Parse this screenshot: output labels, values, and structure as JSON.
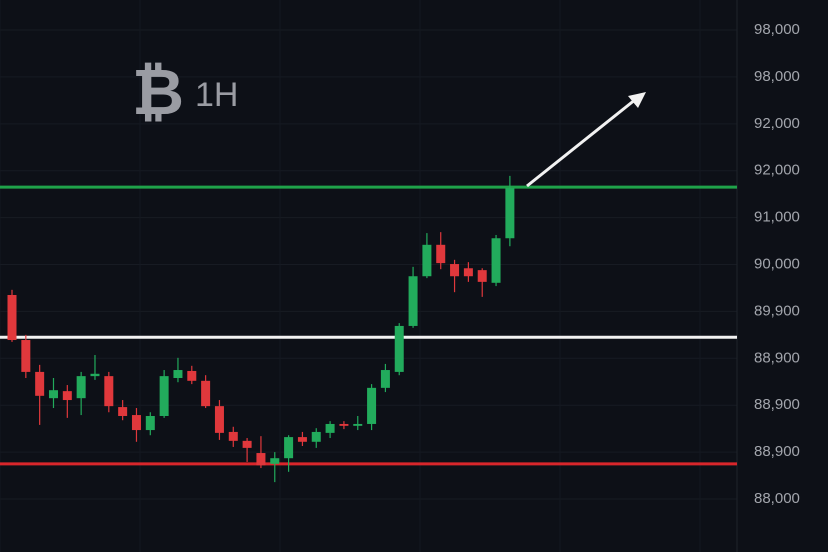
{
  "chart_data": {
    "type": "candlestick",
    "symbol": "₿",
    "title": "1H",
    "ylim": [
      -1.13,
      10.64
    ],
    "yticks": [
      {
        "value": 0,
        "label": "88,000"
      },
      {
        "value": 1,
        "label": "88,900"
      },
      {
        "value": 2,
        "label": "88,900"
      },
      {
        "value": 3,
        "label": "88,900"
      },
      {
        "value": 4,
        "label": "89,900"
      },
      {
        "value": 5,
        "label": "90,000"
      },
      {
        "value": 6,
        "label": "91,000"
      },
      {
        "value": 7,
        "label": "92,000"
      },
      {
        "value": 8,
        "label": "92,000"
      },
      {
        "value": 9,
        "label": "98,000"
      },
      {
        "value": 10,
        "label": "98,000"
      }
    ],
    "grid": true,
    "up_color": "#22ab5c",
    "down_color": "#e0383c",
    "levels": [
      {
        "value": 6.65,
        "color": "#1fa34a"
      },
      {
        "value": 3.45,
        "color": "#f2f2f2"
      },
      {
        "value": 0.75,
        "color": "#d9262b"
      }
    ],
    "candles": [
      {
        "open": 4.35,
        "high": 4.46,
        "low": 3.35,
        "close": 3.39
      },
      {
        "open": 3.39,
        "high": 3.5,
        "low": 2.58,
        "close": 2.71
      },
      {
        "open": 2.71,
        "high": 2.86,
        "low": 1.58,
        "close": 2.2
      },
      {
        "open": 2.15,
        "high": 2.58,
        "low": 1.94,
        "close": 2.32
      },
      {
        "open": 2.3,
        "high": 2.43,
        "low": 1.73,
        "close": 2.11
      },
      {
        "open": 2.15,
        "high": 2.71,
        "low": 1.79,
        "close": 2.62
      },
      {
        "open": 2.62,
        "high": 3.07,
        "low": 2.54,
        "close": 2.67
      },
      {
        "open": 2.62,
        "high": 2.71,
        "low": 1.85,
        "close": 1.98
      },
      {
        "open": 1.96,
        "high": 2.11,
        "low": 1.68,
        "close": 1.77
      },
      {
        "open": 1.79,
        "high": 1.94,
        "low": 1.22,
        "close": 1.47
      },
      {
        "open": 1.47,
        "high": 1.85,
        "low": 1.36,
        "close": 1.77
      },
      {
        "open": 1.77,
        "high": 2.75,
        "low": 1.73,
        "close": 2.62
      },
      {
        "open": 2.58,
        "high": 3.01,
        "low": 2.49,
        "close": 2.75
      },
      {
        "open": 2.73,
        "high": 2.84,
        "low": 2.45,
        "close": 2.52
      },
      {
        "open": 2.52,
        "high": 2.64,
        "low": 1.94,
        "close": 1.98
      },
      {
        "open": 1.98,
        "high": 2.11,
        "low": 1.26,
        "close": 1.41
      },
      {
        "open": 1.43,
        "high": 1.54,
        "low": 1.11,
        "close": 1.24
      },
      {
        "open": 1.24,
        "high": 1.3,
        "low": 0.79,
        "close": 1.09
      },
      {
        "open": 0.98,
        "high": 1.34,
        "low": 0.66,
        "close": 0.72
      },
      {
        "open": 0.75,
        "high": 1.0,
        "low": 0.36,
        "close": 0.87
      },
      {
        "open": 0.87,
        "high": 1.36,
        "low": 0.58,
        "close": 1.32
      },
      {
        "open": 1.32,
        "high": 1.43,
        "low": 1.13,
        "close": 1.22
      },
      {
        "open": 1.22,
        "high": 1.51,
        "low": 1.09,
        "close": 1.43
      },
      {
        "open": 1.41,
        "high": 1.66,
        "low": 1.3,
        "close": 1.6
      },
      {
        "open": 1.6,
        "high": 1.66,
        "low": 1.49,
        "close": 1.56
      },
      {
        "open": 1.56,
        "high": 1.77,
        "low": 1.47,
        "close": 1.6
      },
      {
        "open": 1.6,
        "high": 2.45,
        "low": 1.47,
        "close": 2.37
      },
      {
        "open": 2.37,
        "high": 2.88,
        "low": 2.28,
        "close": 2.75
      },
      {
        "open": 2.71,
        "high": 3.75,
        "low": 2.64,
        "close": 3.69
      },
      {
        "open": 3.69,
        "high": 4.95,
        "low": 3.65,
        "close": 4.75
      },
      {
        "open": 4.75,
        "high": 5.67,
        "low": 4.71,
        "close": 5.42
      },
      {
        "open": 5.42,
        "high": 5.69,
        "low": 4.9,
        "close": 5.03
      },
      {
        "open": 5.01,
        "high": 5.1,
        "low": 4.41,
        "close": 4.75
      },
      {
        "open": 4.92,
        "high": 5.05,
        "low": 4.63,
        "close": 4.75
      },
      {
        "open": 4.88,
        "high": 4.92,
        "low": 4.31,
        "close": 4.63
      },
      {
        "open": 4.61,
        "high": 5.63,
        "low": 4.54,
        "close": 5.56
      },
      {
        "open": 5.56,
        "high": 6.89,
        "low": 5.39,
        "close": 6.63
      }
    ]
  }
}
